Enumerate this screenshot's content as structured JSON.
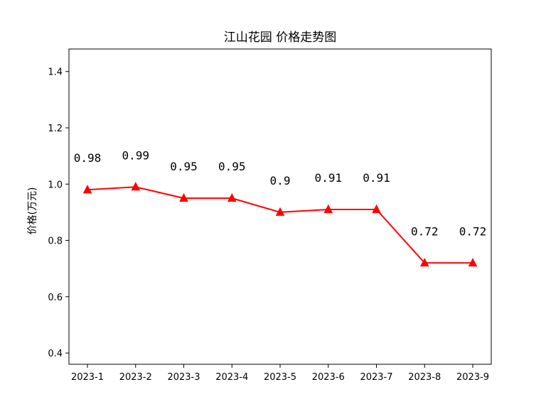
{
  "chart_data": {
    "type": "line",
    "title": "江山花园 价格走势图",
    "xlabel": "",
    "ylabel": "价格(万元)",
    "categories": [
      "2023-1",
      "2023-2",
      "2023-3",
      "2023-4",
      "2023-5",
      "2023-6",
      "2023-7",
      "2023-8",
      "2023-9"
    ],
    "series": [
      {
        "values": [
          0.98,
          0.99,
          0.95,
          0.95,
          0.9,
          0.91,
          0.91,
          0.72,
          0.72
        ],
        "color": "#ff0000",
        "marker": "triangle"
      }
    ],
    "data_labels": [
      "0.98",
      "0.99",
      "0.95",
      "0.95",
      "0.9",
      "0.91",
      "0.91",
      "0.72",
      "0.72"
    ],
    "ylim": [
      0.36,
      1.48
    ],
    "yticks": [
      0.4,
      0.6,
      0.8,
      1.0,
      1.2,
      1.4
    ],
    "ytick_labels": [
      "0.4",
      "0.6",
      "0.8",
      "1.0",
      "1.2",
      "1.4"
    ],
    "grid": false,
    "legend": "none"
  }
}
